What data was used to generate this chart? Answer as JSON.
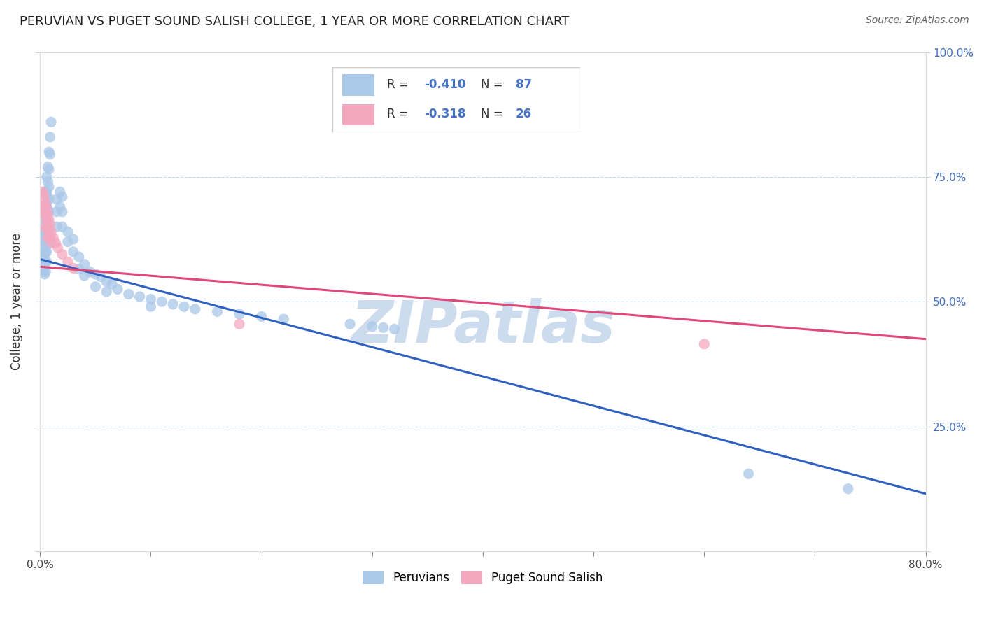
{
  "title": "PERUVIAN VS PUGET SOUND SALISH COLLEGE, 1 YEAR OR MORE CORRELATION CHART",
  "source": "Source: ZipAtlas.com",
  "ylabel": "College, 1 year or more",
  "xlim": [
    0.0,
    0.8
  ],
  "ylim": [
    0.0,
    1.0
  ],
  "blue_color": "#aac8e8",
  "pink_color": "#f4a8c0",
  "blue_line_color": "#3060c0",
  "pink_line_color": "#e04878",
  "blue_line_y0": 0.585,
  "blue_line_y1": 0.115,
  "pink_line_y0": 0.57,
  "pink_line_y1": 0.425,
  "watermark": "ZIPatlas",
  "watermark_color": "#ccdcee",
  "legend_label1": "Peruvians",
  "legend_label2": "Puget Sound Salish",
  "accent_color": "#4472c4",
  "blue_scatter": [
    [
      0.002,
      0.595
    ],
    [
      0.002,
      0.58
    ],
    [
      0.002,
      0.565
    ],
    [
      0.003,
      0.64
    ],
    [
      0.003,
      0.62
    ],
    [
      0.003,
      0.6
    ],
    [
      0.003,
      0.58
    ],
    [
      0.003,
      0.56
    ],
    [
      0.004,
      0.68
    ],
    [
      0.004,
      0.655
    ],
    [
      0.004,
      0.635
    ],
    [
      0.004,
      0.615
    ],
    [
      0.004,
      0.595
    ],
    [
      0.004,
      0.575
    ],
    [
      0.004,
      0.555
    ],
    [
      0.005,
      0.72
    ],
    [
      0.005,
      0.69
    ],
    [
      0.005,
      0.665
    ],
    [
      0.005,
      0.64
    ],
    [
      0.005,
      0.62
    ],
    [
      0.005,
      0.6
    ],
    [
      0.005,
      0.58
    ],
    [
      0.005,
      0.56
    ],
    [
      0.006,
      0.75
    ],
    [
      0.006,
      0.72
    ],
    [
      0.006,
      0.695
    ],
    [
      0.006,
      0.67
    ],
    [
      0.006,
      0.645
    ],
    [
      0.006,
      0.625
    ],
    [
      0.006,
      0.6
    ],
    [
      0.006,
      0.58
    ],
    [
      0.007,
      0.77
    ],
    [
      0.007,
      0.74
    ],
    [
      0.007,
      0.71
    ],
    [
      0.007,
      0.685
    ],
    [
      0.007,
      0.66
    ],
    [
      0.007,
      0.635
    ],
    [
      0.007,
      0.615
    ],
    [
      0.008,
      0.8
    ],
    [
      0.008,
      0.765
    ],
    [
      0.008,
      0.73
    ],
    [
      0.008,
      0.705
    ],
    [
      0.008,
      0.68
    ],
    [
      0.009,
      0.83
    ],
    [
      0.009,
      0.795
    ],
    [
      0.01,
      0.86
    ],
    [
      0.015,
      0.705
    ],
    [
      0.015,
      0.68
    ],
    [
      0.015,
      0.65
    ],
    [
      0.018,
      0.72
    ],
    [
      0.018,
      0.69
    ],
    [
      0.02,
      0.71
    ],
    [
      0.02,
      0.68
    ],
    [
      0.02,
      0.65
    ],
    [
      0.025,
      0.64
    ],
    [
      0.025,
      0.62
    ],
    [
      0.03,
      0.625
    ],
    [
      0.03,
      0.6
    ],
    [
      0.035,
      0.59
    ],
    [
      0.035,
      0.565
    ],
    [
      0.04,
      0.575
    ],
    [
      0.04,
      0.552
    ],
    [
      0.045,
      0.56
    ],
    [
      0.05,
      0.555
    ],
    [
      0.05,
      0.53
    ],
    [
      0.055,
      0.55
    ],
    [
      0.06,
      0.54
    ],
    [
      0.06,
      0.52
    ],
    [
      0.065,
      0.535
    ],
    [
      0.07,
      0.525
    ],
    [
      0.08,
      0.515
    ],
    [
      0.09,
      0.51
    ],
    [
      0.1,
      0.505
    ],
    [
      0.1,
      0.49
    ],
    [
      0.11,
      0.5
    ],
    [
      0.12,
      0.495
    ],
    [
      0.13,
      0.49
    ],
    [
      0.14,
      0.485
    ],
    [
      0.16,
      0.48
    ],
    [
      0.18,
      0.475
    ],
    [
      0.2,
      0.47
    ],
    [
      0.22,
      0.465
    ],
    [
      0.28,
      0.455
    ],
    [
      0.3,
      0.45
    ],
    [
      0.31,
      0.448
    ],
    [
      0.32,
      0.445
    ],
    [
      0.64,
      0.155
    ],
    [
      0.73,
      0.125
    ]
  ],
  "pink_scatter": [
    [
      0.002,
      0.72
    ],
    [
      0.003,
      0.715
    ],
    [
      0.003,
      0.69
    ],
    [
      0.004,
      0.705
    ],
    [
      0.004,
      0.68
    ],
    [
      0.005,
      0.695
    ],
    [
      0.005,
      0.67
    ],
    [
      0.005,
      0.648
    ],
    [
      0.006,
      0.685
    ],
    [
      0.006,
      0.66
    ],
    [
      0.007,
      0.675
    ],
    [
      0.007,
      0.65
    ],
    [
      0.007,
      0.628
    ],
    [
      0.008,
      0.665
    ],
    [
      0.008,
      0.642
    ],
    [
      0.009,
      0.655
    ],
    [
      0.009,
      0.63
    ],
    [
      0.01,
      0.64
    ],
    [
      0.01,
      0.618
    ],
    [
      0.012,
      0.628
    ],
    [
      0.014,
      0.618
    ],
    [
      0.016,
      0.608
    ],
    [
      0.02,
      0.595
    ],
    [
      0.025,
      0.58
    ],
    [
      0.03,
      0.567
    ],
    [
      0.18,
      0.455
    ],
    [
      0.6,
      0.415
    ]
  ]
}
